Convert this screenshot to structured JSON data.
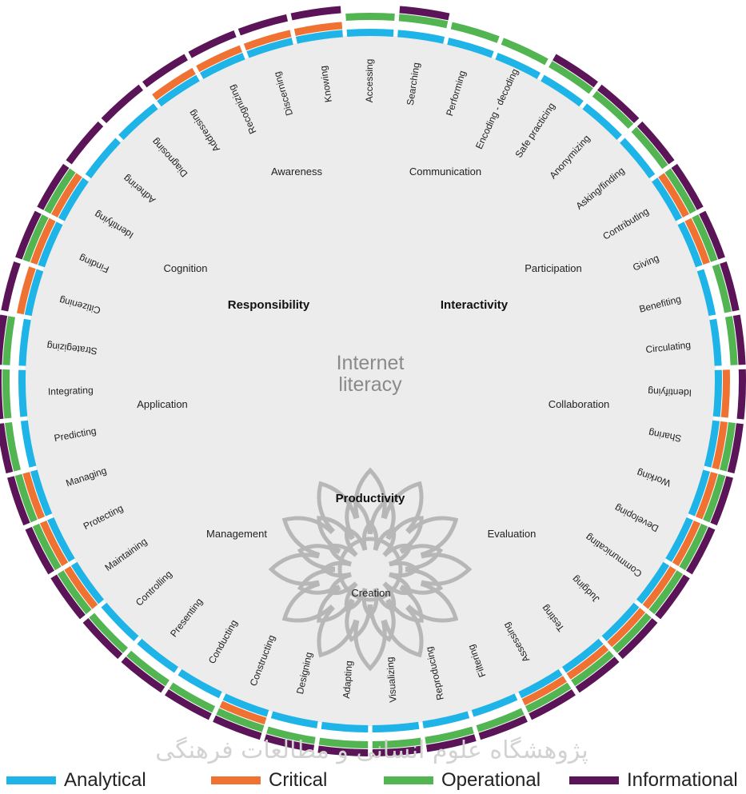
{
  "colors": {
    "analytical": "#1fb4e8",
    "critical": "#f07232",
    "operational": "#52b552",
    "informational": "#5b1458",
    "disk": "#ececec",
    "ornament": "#b7b7b7"
  },
  "center": {
    "title_line1": "Internet",
    "title_line2": "literacy"
  },
  "dimensions": [
    {
      "label": "Responsibility"
    },
    {
      "label": "Interactivity"
    },
    {
      "label": "Productivity"
    }
  ],
  "categories": [
    {
      "label": "Awareness"
    },
    {
      "label": "Communication"
    },
    {
      "label": "Cognition"
    },
    {
      "label": "Participation"
    },
    {
      "label": "Application"
    },
    {
      "label": "Collaboration"
    },
    {
      "label": "Management"
    },
    {
      "label": "Evaluation"
    },
    {
      "label": "Creation"
    }
  ],
  "skills": [
    {
      "label": "Accessing",
      "rings": [
        "analytical",
        "operational"
      ]
    },
    {
      "label": "Searching",
      "rings": [
        "analytical",
        "operational",
        "informational"
      ]
    },
    {
      "label": "Performing",
      "rings": [
        "analytical",
        "operational"
      ]
    },
    {
      "label": "Encoding - decoding",
      "rings": [
        "analytical",
        "operational"
      ]
    },
    {
      "label": "Safe practicing",
      "rings": [
        "analytical",
        "operational",
        "informational"
      ]
    },
    {
      "label": "Anonymizing",
      "rings": [
        "analytical",
        "operational",
        "informational"
      ]
    },
    {
      "label": "Asking/finding",
      "rings": [
        "analytical",
        "operational",
        "informational"
      ]
    },
    {
      "label": "Contributing",
      "rings": [
        "analytical",
        "critical",
        "operational",
        "informational"
      ]
    },
    {
      "label": "Giving",
      "rings": [
        "analytical",
        "critical",
        "operational",
        "informational"
      ]
    },
    {
      "label": "Benefiting",
      "rings": [
        "analytical",
        "operational",
        "informational"
      ]
    },
    {
      "label": "Circulating",
      "rings": [
        "analytical",
        "operational",
        "informational"
      ]
    },
    {
      "label": "Identifying",
      "rings": [
        "analytical",
        "critical",
        "informational"
      ]
    },
    {
      "label": "Sharing",
      "rings": [
        "analytical",
        "critical",
        "operational",
        "informational"
      ]
    },
    {
      "label": "Working",
      "rings": [
        "analytical",
        "critical",
        "operational",
        "informational"
      ]
    },
    {
      "label": "Developing",
      "rings": [
        "analytical",
        "critical",
        "operational",
        "informational"
      ]
    },
    {
      "label": "Communicating",
      "rings": [
        "analytical",
        "critical",
        "operational",
        "informational"
      ]
    },
    {
      "label": "Judging",
      "rings": [
        "analytical",
        "critical",
        "operational",
        "informational"
      ]
    },
    {
      "label": "Testing",
      "rings": [
        "analytical",
        "critical",
        "operational",
        "informational"
      ]
    },
    {
      "label": "Assessing",
      "rings": [
        "analytical",
        "critical",
        "operational",
        "informational"
      ]
    },
    {
      "label": "Filtering",
      "rings": [
        "analytical",
        "operational",
        "informational"
      ]
    },
    {
      "label": "Reproducing",
      "rings": [
        "analytical",
        "operational",
        "informational"
      ]
    },
    {
      "label": "Visualizing",
      "rings": [
        "analytical",
        "operational",
        "informational"
      ]
    },
    {
      "label": "Adapting",
      "rings": [
        "analytical",
        "operational",
        "informational"
      ]
    },
    {
      "label": "Designing",
      "rings": [
        "analytical",
        "operational",
        "informational"
      ]
    },
    {
      "label": "Constructing",
      "rings": [
        "analytical",
        "critical",
        "operational",
        "informational"
      ]
    },
    {
      "label": "Conducting",
      "rings": [
        "analytical",
        "operational",
        "informational"
      ]
    },
    {
      "label": "Presenting",
      "rings": [
        "analytical",
        "operational",
        "informational"
      ]
    },
    {
      "label": "Controlling",
      "rings": [
        "analytical",
        "operational",
        "informational"
      ]
    },
    {
      "label": "Maintaining",
      "rings": [
        "analytical",
        "critical",
        "operational",
        "informational"
      ]
    },
    {
      "label": "Protecting",
      "rings": [
        "analytical",
        "critical",
        "operational",
        "informational"
      ]
    },
    {
      "label": "Managing",
      "rings": [
        "analytical",
        "critical",
        "operational",
        "informational"
      ]
    },
    {
      "label": "Predicting",
      "rings": [
        "analytical",
        "operational",
        "informational"
      ]
    },
    {
      "label": "Integrating",
      "rings": [
        "analytical",
        "operational",
        "informational"
      ]
    },
    {
      "label": "Strategizing",
      "rings": [
        "analytical",
        "operational",
        "informational"
      ]
    },
    {
      "label": "Citizening",
      "rings": [
        "analytical",
        "critical",
        "informational"
      ]
    },
    {
      "label": "Finding",
      "rings": [
        "analytical",
        "critical",
        "operational",
        "informational"
      ]
    },
    {
      "label": "Identifying",
      "rings": [
        "analytical",
        "critical",
        "operational",
        "informational"
      ]
    },
    {
      "label": "Adhering",
      "rings": [
        "analytical",
        "informational"
      ]
    },
    {
      "label": "Diagnosing",
      "rings": [
        "analytical",
        "informational"
      ]
    },
    {
      "label": "Addressing",
      "rings": [
        "analytical",
        "critical",
        "informational"
      ]
    },
    {
      "label": "Recognizing",
      "rings": [
        "analytical",
        "critical",
        "informational"
      ]
    },
    {
      "label": "Discerning",
      "rings": [
        "analytical",
        "critical",
        "informational"
      ]
    },
    {
      "label": "Knowing",
      "rings": [
        "analytical",
        "critical",
        "informational"
      ]
    }
  ],
  "legend": [
    {
      "key": "analytical",
      "label": "Analytical"
    },
    {
      "key": "critical",
      "label": "Critical"
    },
    {
      "key": "operational",
      "label": "Operational"
    },
    {
      "key": "informational",
      "label": "Informational"
    }
  ],
  "watermark": "پژوهشگاه علوم انسانی و مطالعات فرهنگی"
}
